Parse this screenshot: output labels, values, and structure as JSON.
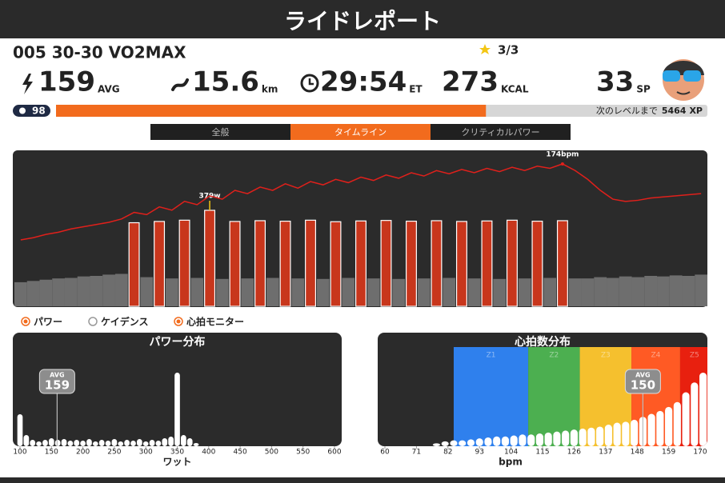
{
  "header": {
    "title": "ライドレポート"
  },
  "workout": {
    "name": "005 30-30 VO2MAX",
    "stars": "3/3"
  },
  "stats": [
    {
      "value": 159,
      "unit": "AVG"
    },
    {
      "value": 15.6,
      "unit": "km"
    },
    {
      "value": "29:54",
      "unit": "ET"
    },
    {
      "value": 273,
      "unit": "KCAL"
    },
    {
      "value": 33,
      "unit": "SP"
    }
  ],
  "level": {
    "level": 98,
    "progress": 66,
    "next_label": "次のレベルまで",
    "xp": 5464,
    "xp_unit": "XP"
  },
  "tabs": [
    {
      "label": "全般",
      "active": false
    },
    {
      "label": "タイムライン",
      "active": true
    },
    {
      "label": "クリティカルパワー",
      "active": false
    }
  ],
  "timeline": {
    "power": [
      95,
      100,
      105,
      110,
      112,
      118,
      120,
      125,
      128,
      330,
      115,
      335,
      110,
      340,
      112,
      379,
      108,
      335,
      110,
      338,
      112,
      336,
      110,
      340,
      108,
      334,
      112,
      337,
      110,
      339,
      108,
      336,
      110,
      338,
      112,
      335,
      110,
      337,
      108,
      340,
      110,
      336,
      112,
      338,
      110,
      110,
      115,
      112,
      118,
      115,
      120,
      118,
      122,
      120,
      125
    ],
    "heart_rate": [
      105,
      107,
      110,
      112,
      115,
      117,
      119,
      121,
      124,
      130,
      128,
      135,
      132,
      140,
      137,
      145,
      142,
      150,
      147,
      153,
      150,
      156,
      152,
      158,
      155,
      160,
      157,
      162,
      159,
      164,
      161,
      166,
      163,
      168,
      165,
      169,
      166,
      170,
      167,
      171,
      168,
      172,
      170,
      174,
      168,
      160,
      150,
      142,
      140,
      141,
      143,
      144,
      145,
      146,
      147
    ],
    "power_annotation": "379w",
    "hr_annotation": "174bpm",
    "interval_color": "#c8361c",
    "recovery_color": "#6e6e6e",
    "hr_color": "#e0201b",
    "legend": [
      {
        "name": "パワー",
        "checked": true
      },
      {
        "name": "ケイデンス",
        "checked": false
      },
      {
        "name": "心拍モニター",
        "checked": true
      }
    ]
  },
  "power_distribution": {
    "type": "bar",
    "title": "パワー分布",
    "x": [
      100,
      110,
      120,
      130,
      140,
      150,
      160,
      170,
      180,
      190,
      200,
      210,
      220,
      230,
      240,
      250,
      260,
      270,
      280,
      290,
      300,
      310,
      320,
      330,
      340,
      350,
      360,
      370,
      380
    ],
    "values": [
      40,
      14,
      8,
      6,
      8,
      10,
      8,
      9,
      7,
      8,
      7,
      9,
      6,
      8,
      7,
      9,
      6,
      8,
      7,
      9,
      6,
      8,
      7,
      10,
      12,
      92,
      14,
      10,
      4
    ],
    "xlim": [
      100,
      600
    ],
    "xticks": [
      100,
      150,
      200,
      250,
      300,
      350,
      400,
      450,
      500,
      550,
      600
    ],
    "xlabel": "ワット",
    "avg_label": "AVG",
    "avg": 159,
    "color": "#ffffff"
  },
  "hr_distribution": {
    "type": "bar",
    "title": "心拍数分布",
    "x": [
      78,
      81,
      84,
      87,
      90,
      93,
      96,
      99,
      102,
      105,
      108,
      111,
      114,
      117,
      120,
      123,
      126,
      129,
      132,
      135,
      138,
      141,
      144,
      147,
      150,
      153,
      156,
      159,
      162,
      165,
      168,
      171
    ],
    "values": [
      3,
      5,
      6,
      6,
      7,
      8,
      9,
      10,
      10,
      11,
      12,
      12,
      13,
      14,
      15,
      16,
      17,
      18,
      19,
      20,
      22,
      24,
      25,
      27,
      30,
      33,
      36,
      40,
      45,
      55,
      65,
      75
    ],
    "xlim": [
      60,
      170
    ],
    "xticks": [
      60,
      71,
      82,
      93,
      104,
      115,
      126,
      137,
      148,
      159,
      170
    ],
    "xlabel": "bpm",
    "avg_label": "AVG",
    "avg": 150,
    "color": "#ffffff",
    "zones": [
      {
        "name": "Z1",
        "from": 84,
        "to": 110,
        "color": "#2f80ed"
      },
      {
        "name": "Z2",
        "from": 110,
        "to": 128,
        "color": "#4caf50"
      },
      {
        "name": "Z3",
        "from": 128,
        "to": 146,
        "color": "#f5c02e"
      },
      {
        "name": "Z4",
        "from": 146,
        "to": 163,
        "color": "#ff5a24"
      },
      {
        "name": "Z5",
        "from": 163,
        "to": 173,
        "color": "#e8200f"
      }
    ]
  }
}
